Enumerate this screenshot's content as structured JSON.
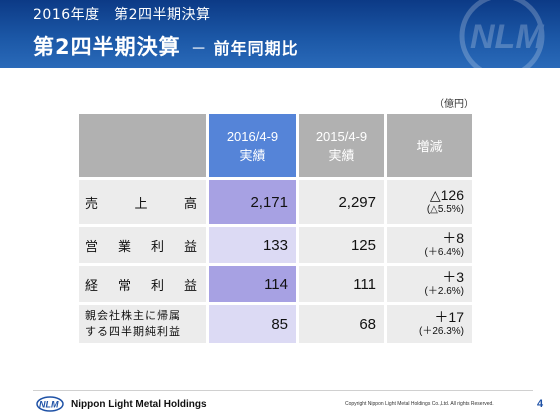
{
  "header": {
    "subtitle": "2016年度　第2四半期決算",
    "title": "第2四半期決算",
    "separator": "－",
    "title_sub": "前年同期比"
  },
  "unit": "（億円）",
  "table": {
    "col_current_line1": "2016/4-9",
    "col_current_line2": "実績",
    "col_prev_line1": "2015/4-9",
    "col_prev_line2": "実績",
    "col_diff": "増減",
    "rows": [
      {
        "label_chars": [
          "売",
          "上",
          "高"
        ],
        "current": "2,171",
        "prev": "2,297",
        "diff": "△126",
        "diff_pct": "(△5.5%)"
      },
      {
        "label_chars": [
          "営",
          "業",
          "利",
          "益"
        ],
        "current": "133",
        "prev": "125",
        "diff": "＋8",
        "diff_pct": "(＋6.4%)"
      },
      {
        "label_chars": [
          "経",
          "常",
          "利",
          "益"
        ],
        "current": "114",
        "prev": "111",
        "diff": "＋3",
        "diff_pct": "(＋2.6%)"
      },
      {
        "label_line1": "親会社株主に帰属",
        "label_line2": "する四半期純利益",
        "current": "85",
        "prev": "68",
        "diff": "＋17",
        "diff_pct": "(＋26.3%)"
      }
    ]
  },
  "footer": {
    "company": "Nippon Light Metal Holdings",
    "copyright": "Copyright Nippon Light Metal Holdings Co.,Ltd. All rights Reserved.",
    "page_number": "4",
    "logo_text": "NLM"
  },
  "colors": {
    "header_blue": "#1b57a6",
    "current_header": "#5584d8",
    "current_dark": "#a7a1e3",
    "current_light": "#dcdaf4",
    "grey_header": "#b1b1b1",
    "cell_grey": "#ececec"
  }
}
